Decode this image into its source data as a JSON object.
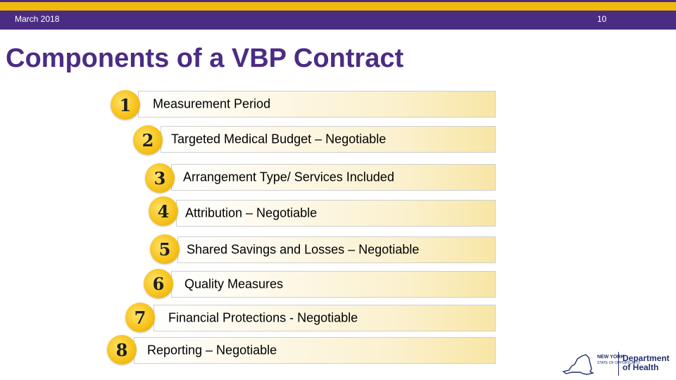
{
  "header": {
    "date": "March 2018",
    "page_number": "10"
  },
  "title": "Components of a VBP Contract",
  "items": [
    {
      "number": "1",
      "label": "Measurement Period"
    },
    {
      "number": "2",
      "label": "Targeted Medical Budget – Negotiable"
    },
    {
      "number": "3",
      "label": "Arrangement Type/ Services Included"
    },
    {
      "number": "4",
      "label": "Attribution – Negotiable"
    },
    {
      "number": "5",
      "label": "Shared Savings and Losses – Negotiable"
    },
    {
      "number": "6",
      "label": "Quality Measures"
    },
    {
      "number": "7",
      "label": "Financial Protections - Negotiable"
    },
    {
      "number": "8",
      "label": "Reporting – Negotiable"
    }
  ],
  "logo": {
    "state_line1": "NEW YORK",
    "state_line2": "STATE OF OPPORTUNITY.",
    "dept_line1": "Department",
    "dept_line2": "of Health"
  },
  "colors": {
    "brand_purple": "#4b2c83",
    "accent_gold": "#f2b90f"
  }
}
